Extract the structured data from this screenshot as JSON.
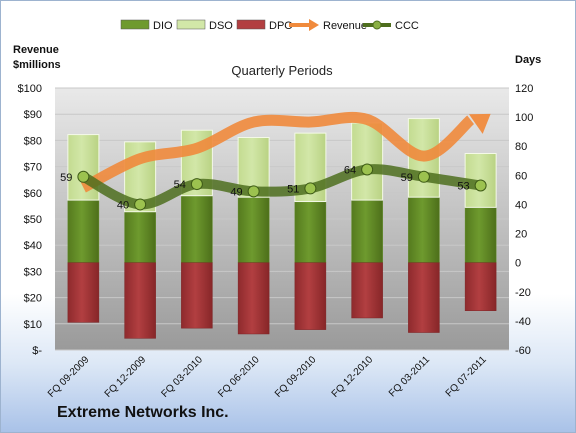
{
  "chart_data": {
    "type": "bar",
    "title": "Quarterly Periods",
    "company": "Extreme Networks Inc.",
    "left_axis_label": [
      "Revenue",
      "$millions"
    ],
    "right_axis_label": "Days",
    "left_axis_ticks": [
      "$-",
      "$10",
      "$20",
      "$30",
      "$40",
      "$50",
      "$60",
      "$70",
      "$80",
      "$90",
      "$100"
    ],
    "left_ylim": [
      0,
      100
    ],
    "right_axis_ticks": [
      "-60",
      "-40",
      "-20",
      "0",
      "20",
      "40",
      "60",
      "80",
      "100",
      "120"
    ],
    "right_ylim": [
      -60,
      120
    ],
    "categories": [
      "FQ 09-2009",
      "FQ 12-2009",
      "FQ 03-2010",
      "FQ 06-2010",
      "FQ 09-2010",
      "FQ 12-2010",
      "FQ 03-2011",
      "FQ 07-2011"
    ],
    "series": [
      {
        "name": "DIO",
        "kind": "bar",
        "axis": "right",
        "color": "#6e9a2e",
        "values": [
          43,
          35,
          46,
          45,
          42,
          43,
          45,
          38
        ]
      },
      {
        "name": "DSO",
        "kind": "bar",
        "axis": "right",
        "color": "#d2e7a8",
        "values": [
          45,
          48,
          45,
          41,
          47,
          53,
          54,
          37
        ]
      },
      {
        "name": "DPO",
        "kind": "bar",
        "axis": "right",
        "color": "#b23f41",
        "values": [
          -41,
          -52,
          -45,
          -49,
          -46,
          -38,
          -48,
          -33
        ]
      },
      {
        "name": "Revenue",
        "kind": "line",
        "axis": "left",
        "color": "#f08a3c",
        "values": [
          62,
          73,
          77,
          87,
          87,
          88,
          74,
          89
        ]
      },
      {
        "name": "CCC",
        "kind": "line",
        "axis": "right",
        "color": "#4e6e1e",
        "values": [
          59,
          40,
          54,
          49,
          51,
          64,
          59,
          53
        ],
        "labels": [
          "59",
          "40",
          "54",
          "49",
          "51",
          "64",
          "59",
          "53"
        ]
      }
    ],
    "legend_position": "top",
    "grid": true
  }
}
